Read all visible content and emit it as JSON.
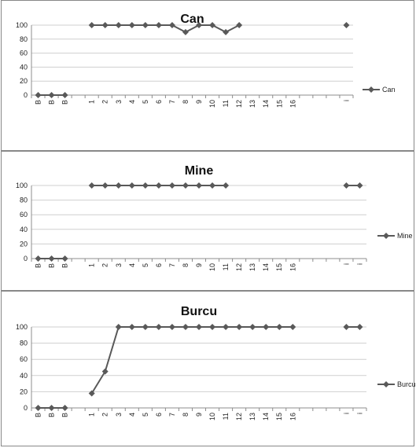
{
  "chart_data": [
    {
      "type": "line",
      "title": "Can",
      "categories": [
        "B",
        "B",
        "B",
        "",
        "1",
        "2",
        "3",
        "4",
        "5",
        "6",
        "7",
        "8",
        "9",
        "10",
        "11",
        "12",
        "13",
        "14",
        "15",
        "16",
        "",
        "",
        "",
        "i"
      ],
      "series": [
        {
          "name": "Can",
          "values": [
            0,
            0,
            0,
            null,
            100,
            100,
            100,
            100,
            100,
            100,
            100,
            90,
            100,
            100,
            90,
            100,
            null,
            null,
            null,
            null,
            null,
            null,
            null,
            100
          ]
        }
      ],
      "ylim": [
        0,
        100
      ],
      "yticks": [
        "0",
        "20",
        "40",
        "60",
        "80",
        "100"
      ],
      "grid": true,
      "legend": "right",
      "color": "#595959"
    },
    {
      "type": "line",
      "title": "Mine",
      "categories": [
        "B",
        "B",
        "B",
        "",
        "1",
        "2",
        "3",
        "4",
        "5",
        "6",
        "7",
        "8",
        "9",
        "10",
        "11",
        "12",
        "13",
        "14",
        "15",
        "16",
        "",
        "",
        "",
        "i",
        "i"
      ],
      "series": [
        {
          "name": "Mine",
          "values": [
            0,
            0,
            0,
            null,
            100,
            100,
            100,
            100,
            100,
            100,
            100,
            100,
            100,
            100,
            100,
            null,
            null,
            null,
            null,
            null,
            null,
            null,
            null,
            100,
            100
          ]
        }
      ],
      "ylim": [
        0,
        100
      ],
      "yticks": [
        "0",
        "20",
        "40",
        "60",
        "80",
        "100"
      ],
      "grid": true,
      "legend": "right",
      "color": "#595959"
    },
    {
      "type": "line",
      "title": "Burcu",
      "categories": [
        "B",
        "B",
        "B",
        "",
        "1",
        "2",
        "3",
        "4",
        "5",
        "6",
        "7",
        "8",
        "9",
        "10",
        "11",
        "12",
        "13",
        "14",
        "15",
        "16",
        "",
        "",
        "",
        "i",
        "i"
      ],
      "series": [
        {
          "name": "Burcu",
          "values": [
            0,
            0,
            0,
            null,
            18,
            45,
            100,
            100,
            100,
            100,
            100,
            100,
            100,
            100,
            100,
            100,
            100,
            100,
            100,
            100,
            null,
            null,
            null,
            100,
            100
          ]
        }
      ],
      "ylim": [
        0,
        100
      ],
      "yticks": [
        "0",
        "20",
        "40",
        "60",
        "80",
        "100"
      ],
      "grid": true,
      "legend": "right",
      "color": "#595959"
    }
  ]
}
